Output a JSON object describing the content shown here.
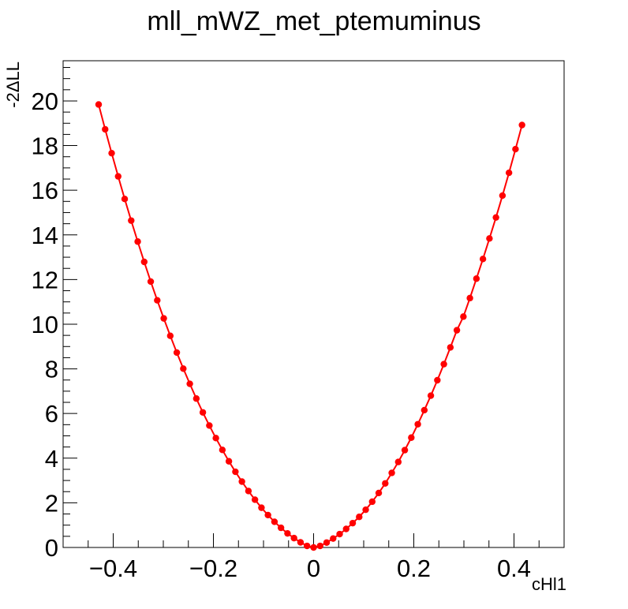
{
  "chart_data": {
    "type": "line",
    "title": "mll_mWZ_met_ptemuminus",
    "xlabel": "cHl1",
    "ylabel": "-2ΔLL",
    "xlim": [
      -0.5,
      0.5
    ],
    "ylim": [
      0,
      21.8
    ],
    "x_ticks": [
      -0.4,
      -0.2,
      0,
      0.2,
      0.4
    ],
    "x_tick_labels": [
      "−0.4",
      "−0.2",
      "0",
      "0.2",
      "0.4"
    ],
    "y_ticks": [
      0,
      2,
      4,
      6,
      8,
      10,
      12,
      14,
      16,
      18,
      20
    ],
    "y_tick_labels": [
      "0",
      "2",
      "4",
      "6",
      "8",
      "10",
      "12",
      "14",
      "16",
      "18",
      "20"
    ],
    "grid": false,
    "legend": "none",
    "series": [
      {
        "color": "#ff0000",
        "marker": "circle",
        "x": [
          -0.4291,
          -0.4161,
          -0.4031,
          -0.3901,
          -0.3771,
          -0.3641,
          -0.3511,
          -0.3381,
          -0.3251,
          -0.3121,
          -0.2991,
          -0.2861,
          -0.2731,
          -0.2601,
          -0.2471,
          -0.2341,
          -0.2211,
          -0.2081,
          -0.1951,
          -0.1821,
          -0.1691,
          -0.1561,
          -0.1431,
          -0.1301,
          -0.1171,
          -0.1041,
          -0.0911,
          -0.0781,
          -0.0651,
          -0.0521,
          -0.0391,
          -0.0261,
          -0.0131,
          0.0,
          0.013,
          0.026,
          0.039,
          0.052,
          0.065,
          0.078,
          0.091,
          0.104,
          0.117,
          0.13,
          0.143,
          0.156,
          0.169,
          0.182,
          0.195,
          0.208,
          0.221,
          0.234,
          0.247,
          0.26,
          0.273,
          0.286,
          0.299,
          0.312,
          0.325,
          0.338,
          0.351,
          0.364,
          0.377,
          0.39,
          0.403,
          0.416
        ],
        "y": [
          19.84,
          18.73,
          17.66,
          16.62,
          15.61,
          14.64,
          13.7,
          12.79,
          11.91,
          11.07,
          10.26,
          9.48,
          8.73,
          8.01,
          7.33,
          6.67,
          6.05,
          5.46,
          4.9,
          4.37,
          3.86,
          3.39,
          2.95,
          2.53,
          2.14,
          1.78,
          1.45,
          1.15,
          0.88,
          0.63,
          0.42,
          0.23,
          0.07,
          0.0,
          0.07,
          0.22,
          0.4,
          0.6,
          0.83,
          1.09,
          1.37,
          1.69,
          2.05,
          2.44,
          2.87,
          3.34,
          3.83,
          4.36,
          4.92,
          5.52,
          6.15,
          6.8,
          7.49,
          8.21,
          8.96,
          9.73,
          10.34,
          11.17,
          12.04,
          12.92,
          13.84,
          14.78,
          15.76,
          16.78,
          17.84,
          18.92
        ]
      }
    ]
  }
}
